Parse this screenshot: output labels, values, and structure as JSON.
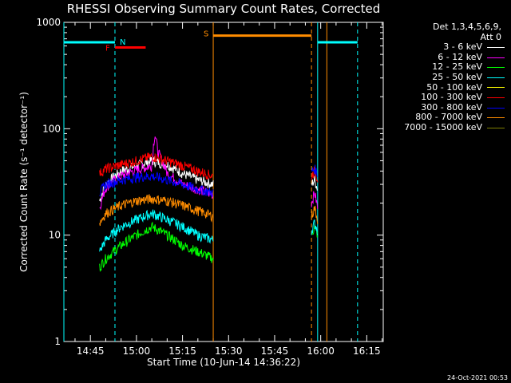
{
  "chart_data": {
    "type": "line",
    "title": "RHESSI Observing Summary Count Rates, Corrected",
    "xlabel": "Start Time (10-Jun-14 14:36:22)",
    "ylabel": "Corrected Count Rate (s⁻¹ detector⁻¹)",
    "yscale": "log",
    "ylim": [
      1,
      1000
    ],
    "xlim_minutes_after_14_36_22": [
      0,
      104
    ],
    "x_ticks": [
      "14:45",
      "15:00",
      "15:15",
      "15:30",
      "15:45",
      "16:00",
      "16:15"
    ],
    "y_ticks": [
      "1",
      "10",
      "100",
      "1000"
    ],
    "legend_header": [
      "Det 1,3,4,5,6,9,",
      "Att 0"
    ],
    "legend_position": "top-right",
    "series": [
      {
        "name": "3 - 6 keV",
        "color": "#ffffff",
        "segments": [
          {
            "x": [
              "14:48",
              "14:50",
              "14:55",
              "15:00",
              "15:05",
              "15:10",
              "15:15",
              "15:20",
              "15:25"
            ],
            "y": [
              21,
              30,
              40,
              45,
              50,
              46,
              38,
              33,
              30
            ]
          },
          {
            "x": [
              "15:57",
              "15:58",
              "15:59"
            ],
            "y": [
              30,
              33,
              27
            ]
          }
        ]
      },
      {
        "name": "6 - 12 keV",
        "color": "#ff00ff",
        "segments": [
          {
            "x": [
              "14:48",
              "14:50",
              "14:55",
              "15:00",
              "15:05",
              "15:06",
              "15:07",
              "15:10",
              "15:15",
              "15:20",
              "15:25"
            ],
            "y": [
              18,
              28,
              36,
              41,
              45,
              90,
              60,
              38,
              30,
              27,
              24
            ]
          },
          {
            "x": [
              "15:57",
              "15:58",
              "15:59"
            ],
            "y": [
              20,
              25,
              18
            ]
          }
        ]
      },
      {
        "name": "12 - 25 keV",
        "color": "#00ff00",
        "segments": [
          {
            "x": [
              "14:48",
              "14:50",
              "14:55",
              "15:00",
              "15:05",
              "15:10",
              "15:15",
              "15:20",
              "15:25"
            ],
            "y": [
              5,
              6,
              8,
              10,
              12,
              10,
              8,
              7,
              6
            ]
          },
          {
            "x": [
              "15:57",
              "15:58",
              "15:59"
            ],
            "y": [
              10,
              12,
              10
            ]
          }
        ]
      },
      {
        "name": "25 - 50 keV",
        "color": "#00ffff",
        "segments": [
          {
            "x": [
              "14:48",
              "14:50",
              "14:55",
              "15:00",
              "15:05",
              "15:10",
              "15:15",
              "15:20",
              "15:25"
            ],
            "y": [
              7,
              9,
              12,
              14,
              16,
              14,
              12,
              10,
              9
            ]
          },
          {
            "x": [
              "15:57",
              "15:58",
              "15:59"
            ],
            "y": [
              11,
              13,
              11
            ]
          }
        ]
      },
      {
        "name": "50 - 100 keV",
        "color": "#ffff00",
        "segments": []
      },
      {
        "name": "100 - 300 keV",
        "color": "#ff0000",
        "segments": [
          {
            "x": [
              "14:48",
              "14:50",
              "14:55",
              "15:00",
              "15:05",
              "15:10",
              "15:15",
              "15:20",
              "15:25"
            ],
            "y": [
              38,
              42,
              46,
              50,
              55,
              50,
              45,
              40,
              36
            ]
          },
          {
            "x": [
              "15:57",
              "15:58",
              "15:59"
            ],
            "y": [
              36,
              40,
              34
            ]
          }
        ]
      },
      {
        "name": "300 - 800 keV",
        "color": "#0000ff",
        "segments": [
          {
            "x": [
              "14:48",
              "14:50",
              "14:55",
              "15:00",
              "15:05",
              "15:10",
              "15:15",
              "15:20",
              "15:25"
            ],
            "y": [
              25,
              30,
              33,
              35,
              36,
              33,
              30,
              27,
              25
            ]
          },
          {
            "x": [
              "15:57",
              "15:58",
              "15:59"
            ],
            "y": [
              40,
              42,
              38
            ]
          }
        ]
      },
      {
        "name": "800 - 7000 keV",
        "color": "#ff8c00",
        "segments": [
          {
            "x": [
              "14:48",
              "14:50",
              "14:55",
              "15:00",
              "15:05",
              "15:10",
              "15:15",
              "15:20",
              "15:25"
            ],
            "y": [
              13,
              16,
              19,
              21,
              22,
              21,
              19,
              17,
              15
            ]
          },
          {
            "x": [
              "15:57",
              "15:58",
              "15:59"
            ],
            "y": [
              15,
              18,
              14
            ]
          }
        ]
      },
      {
        "name": "7000 - 15000 keV",
        "color": "#808000",
        "segments": []
      }
    ],
    "flags": [
      {
        "label": "N",
        "color": "#00ffff",
        "x_start": "14:36:22",
        "x_end": "14:53",
        "level": 650
      },
      {
        "label": "F",
        "color": "#ff0000",
        "x_start": "14:53",
        "x_end": "15:03",
        "level": 580
      },
      {
        "label": "S",
        "color": "#ff8c00",
        "x_start": "15:25",
        "x_end": "15:57",
        "level": 750
      },
      {
        "label": "",
        "color": "#00ffff",
        "x_start": "15:59",
        "x_end": "16:12",
        "level": 650
      }
    ],
    "vlines": [
      {
        "x": "14:36:22",
        "color": "#00ffff",
        "style": "solid"
      },
      {
        "x": "14:53",
        "color": "#00ffff",
        "style": "dashed"
      },
      {
        "x": "15:25",
        "color": "#ff8c00",
        "style": "solid"
      },
      {
        "x": "15:57",
        "color": "#ff8c00",
        "style": "dashed"
      },
      {
        "x": "15:59",
        "color": "#00ffff",
        "style": "solid"
      },
      {
        "x": "16:02",
        "color": "#ff8c00",
        "style": "solid"
      },
      {
        "x": "16:12",
        "color": "#00ffff",
        "style": "dashed"
      }
    ]
  },
  "footer_date": "24-Oct-2021 00:53"
}
